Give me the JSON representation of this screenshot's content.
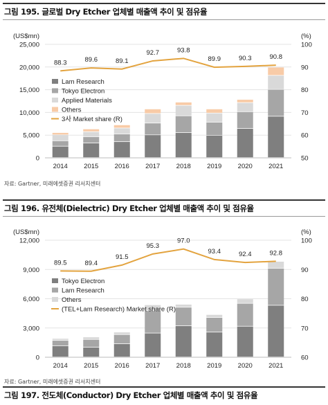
{
  "figure1": {
    "title": "그림 195. 글로벌 Dry Etcher 업체별 매출액 추이 및 점유율",
    "source": "자료: Gartner, 미래에셋증권 리서치센터",
    "chart_data": {
      "type": "bar",
      "stacked": true,
      "left_unit": "(US$mn)",
      "right_unit": "(%)",
      "categories": [
        "2014",
        "2015",
        "2016",
        "2017",
        "2018",
        "2019",
        "2020",
        "2021"
      ],
      "left_ticks": [
        "25,000",
        "20,000",
        "15,000",
        "10,000",
        "5,000",
        "0"
      ],
      "right_ticks": [
        "100",
        "90",
        "80",
        "70",
        "60",
        "50"
      ],
      "ylim": [
        0,
        25000
      ],
      "y2lim": [
        50,
        100
      ],
      "series": [
        {
          "name": "Lam Research",
          "color": "#7f7f7f",
          "values": [
            2500,
            3200,
            3500,
            5000,
            5500,
            4900,
            6400,
            9100
          ]
        },
        {
          "name": "Tokyo Electron",
          "color": "#a6a6a6",
          "values": [
            1200,
            1400,
            1700,
            2600,
            3700,
            2900,
            3700,
            5900
          ]
        },
        {
          "name": "Applied Materials",
          "color": "#d9d9d9",
          "values": [
            1300,
            1100,
            1300,
            2100,
            2300,
            2000,
            2000,
            3100
          ]
        },
        {
          "name": "Others",
          "color": "#f8cba7",
          "values": [
            500,
            600,
            700,
            1000,
            700,
            900,
            700,
            1800
          ]
        }
      ],
      "line": {
        "name": "3사 Market share (R)",
        "color": "#e3a33e",
        "values": [
          88.3,
          89.6,
          89.1,
          92.7,
          93.8,
          89.9,
          90.3,
          90.8
        ],
        "labels": [
          "88.3",
          "89.6",
          "89.1",
          "92.7",
          "93.8",
          "89.9",
          "90.3",
          "90.8"
        ]
      },
      "legend": "left-middle"
    }
  },
  "figure2": {
    "title": "그림 196. 유전체(Dielectric) Dry Etcher 업체별 매출액 추이 및 점유율",
    "source": "자료: Gartner, 미래에셋증권 리서치센터",
    "chart_data": {
      "type": "bar",
      "stacked": true,
      "left_unit": "(US$mn)",
      "right_unit": "(%)",
      "categories": [
        "2014",
        "2015",
        "2016",
        "2017",
        "2018",
        "2019",
        "2020",
        "2021"
      ],
      "left_ticks": [
        "12,000",
        "9,000",
        "6,000",
        "3,000",
        "0"
      ],
      "right_ticks": [
        "100",
        "90",
        "80",
        "70",
        "60"
      ],
      "ylim": [
        0,
        12000
      ],
      "y2lim": [
        60,
        100
      ],
      "series": [
        {
          "name": "Tokyo Electron",
          "color": "#7f7f7f",
          "values": [
            1150,
            1000,
            1350,
            2450,
            3200,
            2550,
            3150,
            5300
          ]
        },
        {
          "name": "Lam Research",
          "color": "#a6a6a6",
          "values": [
            550,
            800,
            950,
            2300,
            1900,
            1500,
            2350,
            3800
          ]
        },
        {
          "name": "Others",
          "color": "#d9d9d9",
          "values": [
            200,
            250,
            250,
            600,
            300,
            300,
            450,
            700
          ]
        }
      ],
      "line": {
        "name": "(TEL+Lam Research) Market share (R)",
        "color": "#e3a33e",
        "values": [
          89.5,
          89.4,
          91.5,
          95.3,
          97.0,
          93.4,
          92.4,
          92.8
        ],
        "labels": [
          "89.5",
          "89.4",
          "91.5",
          "95.3",
          "97.0",
          "93.4",
          "92.4",
          "92.8"
        ]
      },
      "legend": "left-middle"
    }
  },
  "figure3": {
    "title": "그림 197. 전도체(Conductor) Dry Etcher 업체별 매출액 추이 및 점유율"
  }
}
